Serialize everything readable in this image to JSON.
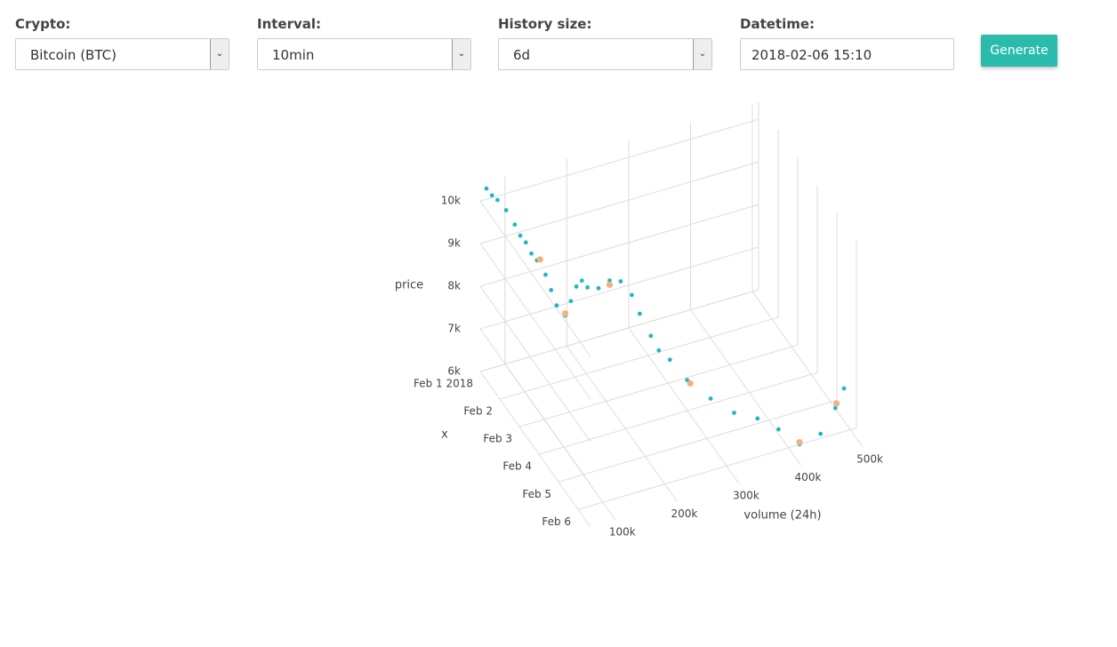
{
  "form": {
    "fields": [
      {
        "label": "Crypto:",
        "value": "Bitcoin (BTC)",
        "kind": "select"
      },
      {
        "label": "Interval:",
        "value": "10min",
        "kind": "select"
      },
      {
        "label": "History size:",
        "value": "6d",
        "kind": "select"
      },
      {
        "label": "Datetime:",
        "value": "2018-02-06 15:10",
        "kind": "input"
      }
    ],
    "button": "Generate"
  },
  "chart_data": {
    "type": "scatter3d",
    "xlabel": "x",
    "ylabel": "volume (24h)",
    "zlabel": "price",
    "grid": true,
    "xlim": [
      "2018-02-01 00:00",
      "2018-02-06 15:10"
    ],
    "ylim": [
      60000,
      510000
    ],
    "zlim": [
      6000,
      10400
    ],
    "xticks": [
      {
        "value": "2018-02-01 00:00",
        "label": "Feb 1 2018"
      },
      {
        "value": "2018-02-02 00:00",
        "label": "Feb 2"
      },
      {
        "value": "2018-02-03 00:00",
        "label": "Feb 3"
      },
      {
        "value": "2018-02-04 00:00",
        "label": "Feb 4"
      },
      {
        "value": "2018-02-05 00:00",
        "label": "Feb 5"
      },
      {
        "value": "2018-02-06 00:00",
        "label": "Feb 6"
      }
    ],
    "yticks": [
      {
        "value": 100000,
        "label": "100k"
      },
      {
        "value": 200000,
        "label": "200k"
      },
      {
        "value": 300000,
        "label": "300k"
      },
      {
        "value": 400000,
        "label": "400k"
      },
      {
        "value": 500000,
        "label": "500k"
      }
    ],
    "zticks": [
      {
        "value": 6000,
        "label": "6k"
      },
      {
        "value": 7000,
        "label": "7k"
      },
      {
        "value": 8000,
        "label": "8k"
      },
      {
        "value": 9000,
        "label": "9k"
      },
      {
        "value": 10000,
        "label": "10k"
      }
    ],
    "series": [
      {
        "color": "#1fb8c3",
        "size": 2.4,
        "x": [
          "2018-02-01 00:00",
          "2018-02-01 03:00",
          "2018-02-01 06:00",
          "2018-02-01 09:00",
          "2018-02-01 12:00",
          "2018-02-01 15:00",
          "2018-02-01 18:00",
          "2018-02-01 21:00",
          "2018-02-02 00:00",
          "2018-02-02 03:00",
          "2018-02-02 06:00",
          "2018-02-02 09:00",
          "2018-02-02 12:00",
          "2018-02-02 15:00",
          "2018-02-02 18:00",
          "2018-02-02 21:00",
          "2018-02-03 00:00",
          "2018-02-03 06:00",
          "2018-02-03 12:00",
          "2018-02-03 18:00",
          "2018-02-04 00:00",
          "2018-02-04 06:00",
          "2018-02-04 12:00",
          "2018-02-04 18:00",
          "2018-02-05 00:00",
          "2018-02-05 06:00",
          "2018-02-05 12:00",
          "2018-02-05 18:00",
          "2018-02-06 00:00",
          "2018-02-06 03:00",
          "2018-02-06 06:00",
          "2018-02-06 09:00",
          "2018-02-06 12:00",
          "2018-02-06 15:00"
        ],
        "y": [
          70000,
          75000,
          80000,
          90000,
          100000,
          105000,
          110000,
          115000,
          120000,
          130000,
          135000,
          140000,
          150000,
          155000,
          160000,
          165000,
          170000,
          180000,
          190000,
          200000,
          210000,
          215000,
          225000,
          230000,
          240000,
          260000,
          290000,
          320000,
          350000,
          380000,
          410000,
          440000,
          460000,
          470000
        ],
        "z": [
          10250,
          10150,
          10100,
          9900,
          9600,
          9400,
          9300,
          9100,
          9000,
          8700,
          8400,
          8100,
          7900,
          8300,
          8700,
          8900,
          8800,
          8900,
          9200,
          9300,
          9100,
          8800,
          8400,
          8200,
          8100,
          7700,
          7300,
          7000,
          6900,
          6600,
          6200,
          6400,
          7000,
          7500
        ]
      },
      {
        "color": "#f5b07f",
        "size": 3.6,
        "x": [
          "2018-02-02 00:00",
          "2018-02-02 12:00",
          "2018-02-03 12:00",
          "2018-02-05 06:00",
          "2018-02-06 06:00",
          "2018-02-06 12:00"
        ],
        "y": [
          125000,
          150000,
          190000,
          265000,
          410000,
          462000
        ],
        "z": [
          9000,
          7950,
          9100,
          7600,
          6250,
          7100
        ]
      }
    ]
  }
}
